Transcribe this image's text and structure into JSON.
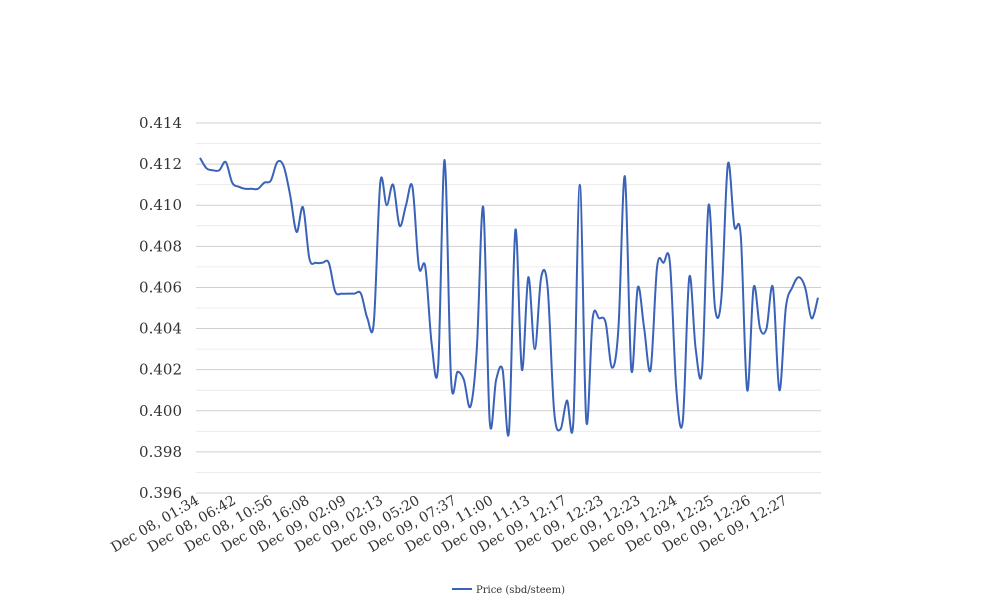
{
  "chart_data": {
    "type": "line",
    "title": "",
    "xlabel": "",
    "ylabel": "",
    "ylim": [
      0.396,
      0.414
    ],
    "y_ticks": [
      0.396,
      0.398,
      0.4,
      0.402,
      0.404,
      0.406,
      0.408,
      0.41,
      0.412,
      0.414
    ],
    "y_tick_labels": [
      "0.396",
      "0.398",
      "0.400",
      "0.402",
      "0.404",
      "0.406",
      "0.408",
      "0.410",
      "0.412",
      "0.414"
    ],
    "x_tick_labels": [
      "Dec 08, 01:34",
      "Dec 08, 06:42",
      "Dec 08, 10:56",
      "Dec 08, 16:08",
      "Dec 09, 02:09",
      "Dec 09, 02:13",
      "Dec 09, 05:20",
      "Dec 09, 07:37",
      "Dec 09, 11:00",
      "Dec 09, 11:13",
      "Dec 09, 12:17",
      "Dec 09, 12:23",
      "Dec 09, 12:23",
      "Dec 09, 12:24",
      "Dec 09, 12:25",
      "Dec 09, 12:26",
      "Dec 09, 12:27"
    ],
    "grid": true,
    "legend_position": "bottom-center",
    "colors": {
      "series": "#3a62b8",
      "grid": "#d0d0d0",
      "text": "#333333"
    },
    "series": [
      {
        "name": "Price (sbd/steem)",
        "values": [
          0.4123,
          0.4118,
          0.4117,
          0.4117,
          0.4121,
          0.4111,
          0.4109,
          0.4108,
          0.4108,
          0.4108,
          0.4111,
          0.4112,
          0.4121,
          0.4119,
          0.4105,
          0.4087,
          0.4099,
          0.4074,
          0.4072,
          0.4072,
          0.4072,
          0.4058,
          0.4057,
          0.4057,
          0.4057,
          0.4057,
          0.4045,
          0.4043,
          0.4111,
          0.41,
          0.411,
          0.409,
          0.41,
          0.4109,
          0.407,
          0.407,
          0.4032,
          0.4022,
          0.4122,
          0.4015,
          0.4019,
          0.4015,
          0.4002,
          0.403,
          0.4099,
          0.3995,
          0.4015,
          0.402,
          0.399,
          0.4088,
          0.402,
          0.4065,
          0.403,
          0.4065,
          0.406,
          0.4,
          0.3991,
          0.4005,
          0.3995,
          0.411,
          0.3995,
          0.4045,
          0.4045,
          0.4043,
          0.4021,
          0.404,
          0.4114,
          0.402,
          0.406,
          0.404,
          0.402,
          0.407,
          0.4072,
          0.4072,
          0.401,
          0.3995,
          0.4065,
          0.403,
          0.402,
          0.41,
          0.405,
          0.4055,
          0.412,
          0.409,
          0.4085,
          0.401,
          0.406,
          0.404,
          0.404,
          0.406,
          0.401,
          0.405,
          0.406,
          0.4065,
          0.406,
          0.4045,
          0.4055
        ]
      }
    ]
  }
}
